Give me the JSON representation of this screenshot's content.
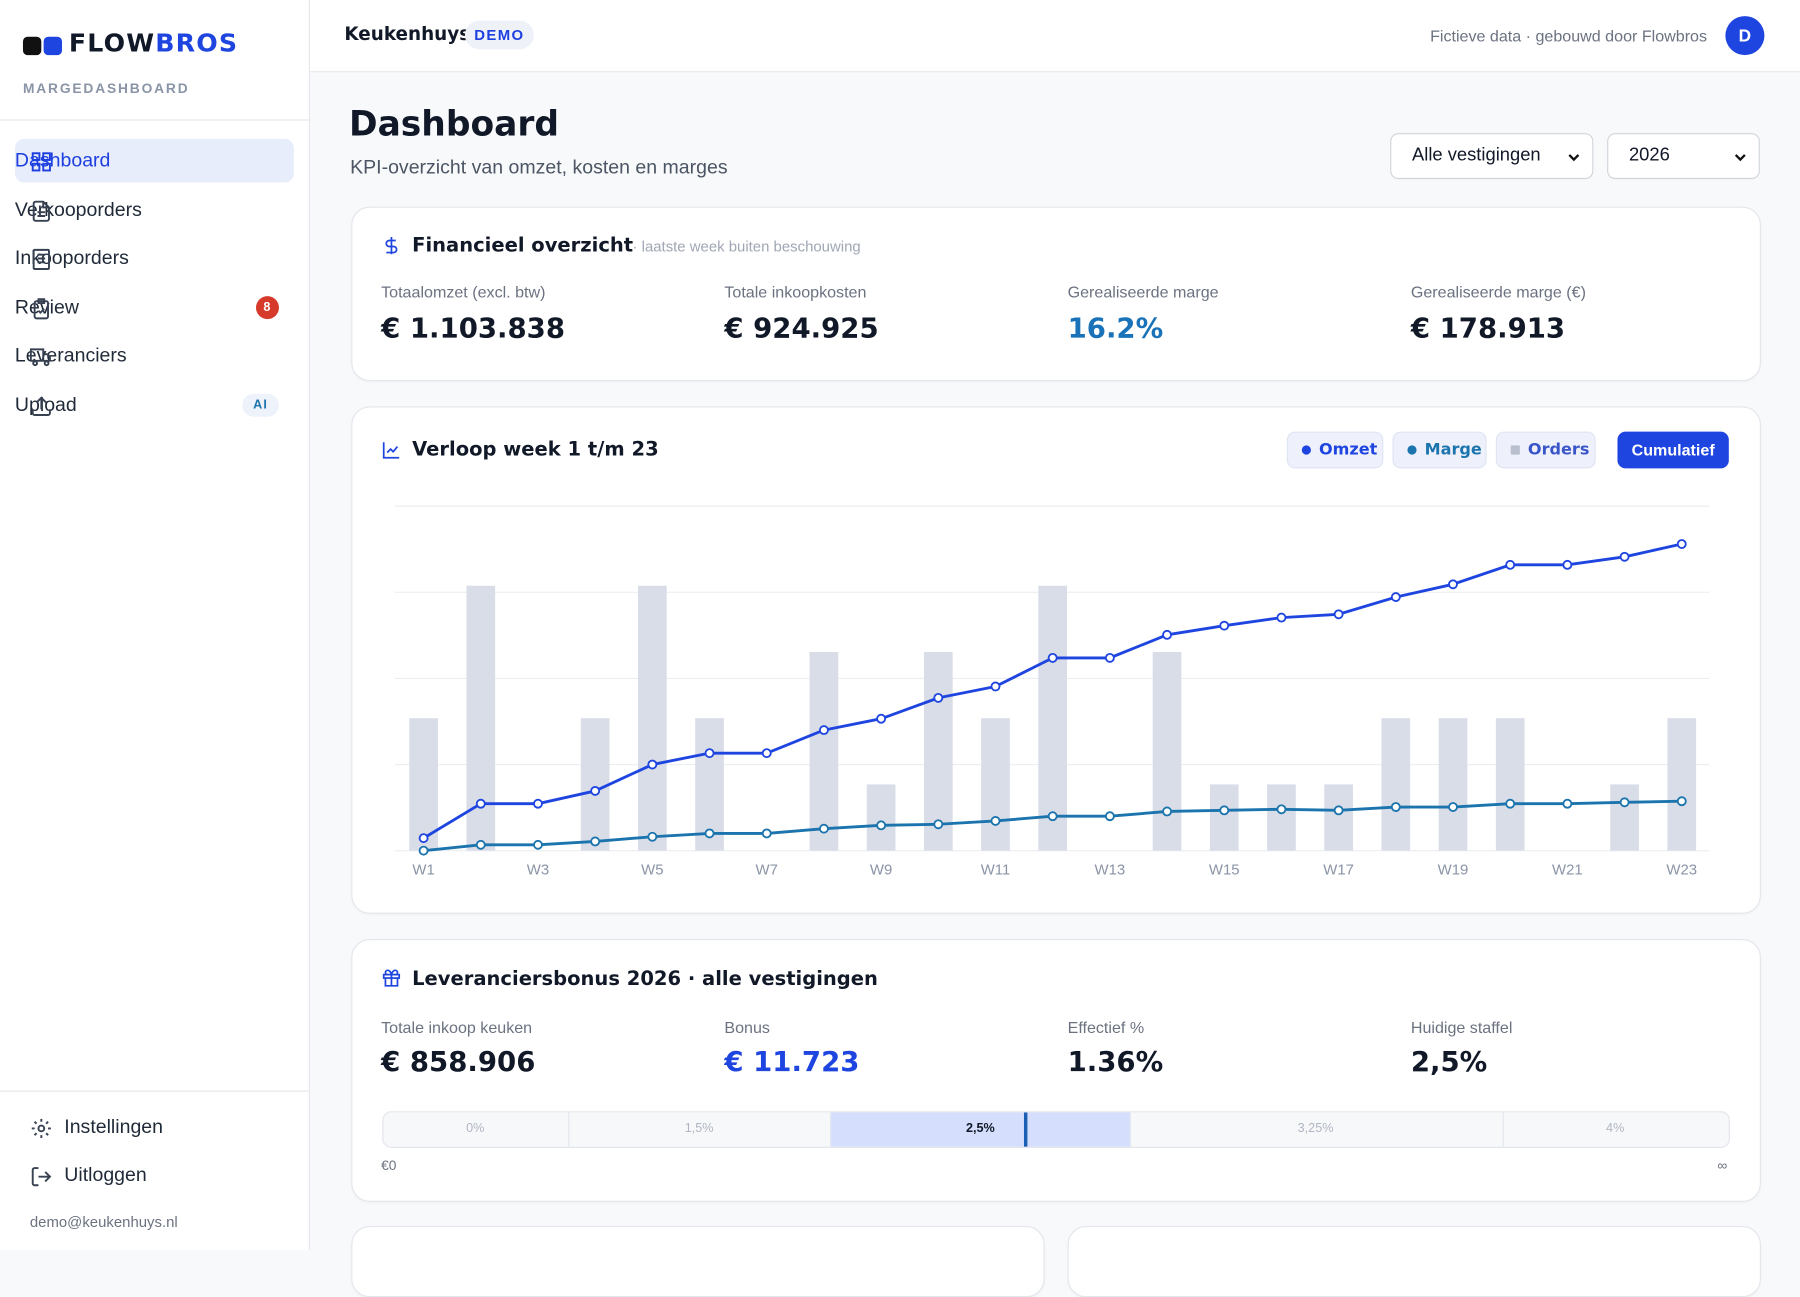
{
  "brand": {
    "name_a": "FLOW",
    "name_b": "BROS",
    "subtitle": "MARGEDASHBOARD"
  },
  "nav": [
    {
      "label": "Dashboard"
    },
    {
      "label": "Verkooporders"
    },
    {
      "label": "Inkooporders"
    },
    {
      "label": "Review",
      "badge": 8
    },
    {
      "label": "Leveranciers"
    },
    {
      "label": "Upload",
      "badge": "AI"
    }
  ],
  "nav_bottom": [
    "Instellingen",
    "Uitloggen"
  ],
  "user_email": "demo@keukenhuys.nl",
  "header": {
    "company": "Keukenhuys",
    "tag": "DEMO",
    "note": "Fictieve data · gebouwd door Flowbros",
    "avatar": "D"
  },
  "page": {
    "title": "Dashboard",
    "subtitle": "KPI-overzicht van omzet, kosten en marges",
    "filters": [
      "Alle vestigingen",
      "2026"
    ]
  },
  "financial": {
    "title": "Financieel overzicht",
    "note": "· laatste week buiten beschouwing",
    "kpis": [
      {
        "label": "Totaalomzet (excl. btw)",
        "value": "€ 1.103.838"
      },
      {
        "label": "Totale inkoopkosten",
        "value": "€ 924.925"
      },
      {
        "label": "Gerealiseerde marge",
        "value": "16.2%"
      },
      {
        "label": "Gerealiseerde marge (€)",
        "value": "€ 178.913"
      }
    ]
  },
  "chart_data": {
    "type": "line",
    "title": "Verloop week 1 t/m 23",
    "toggle": "Cumulatief",
    "categories": [
      "W1",
      null,
      "W3",
      null,
      "W5",
      null,
      "W7",
      null,
      "W9",
      null,
      "W11",
      null,
      "W13",
      null,
      "W15",
      null,
      "W17",
      null,
      "W19",
      null,
      "W21",
      null,
      "W23"
    ],
    "series": [
      {
        "name": "Omzet",
        "color": "#1f45e0",
        "values": [
          45000,
          169000,
          169000,
          215000,
          310000,
          351000,
          351000,
          434000,
          475000,
          550000,
          591000,
          694000,
          694000,
          777000,
          810000,
          839000,
          851000,
          913000,
          959000,
          1029000,
          1029000,
          1058000,
          1104000
        ]
      },
      {
        "name": "Marge",
        "color": "#1b74ad",
        "values": [
          0,
          21000,
          21000,
          33000,
          50000,
          62000,
          62000,
          79000,
          91000,
          95000,
          107000,
          124000,
          124000,
          141000,
          145000,
          149000,
          145000,
          157000,
          157000,
          169000,
          169000,
          174000,
          178000
        ]
      },
      {
        "name": "Orders",
        "kind": "bar",
        "axis": "y2",
        "color": "#d9dde8",
        "values": [
          2,
          4,
          0,
          2,
          4,
          2,
          0,
          3,
          1,
          3,
          2,
          4,
          0,
          3,
          1,
          1,
          1,
          2,
          2,
          2,
          0,
          1,
          2
        ]
      }
    ],
    "ylim": [
      0,
      1240000
    ],
    "yticks": [
      0,
      310000,
      620000,
      930000,
      1240000
    ],
    "y2lim": [
      0,
      5.2
    ],
    "grid": true
  },
  "bonus": {
    "title": "Leveranciersbonus 2026 · alle vestigingen",
    "kpis": [
      {
        "label": "Totale inkoop keuken",
        "value": "€ 858.906"
      },
      {
        "label": "Bonus",
        "value": "€ 11.723"
      },
      {
        "label": "Effectief %",
        "value": "1.36%"
      },
      {
        "label": "Huidige staffel",
        "value": "2,5%"
      }
    ],
    "tiers": [
      "0%",
      "1,5%",
      "2,5%",
      "3,25%",
      "4%"
    ],
    "scale_start": "€0",
    "scale_end": "∞"
  }
}
